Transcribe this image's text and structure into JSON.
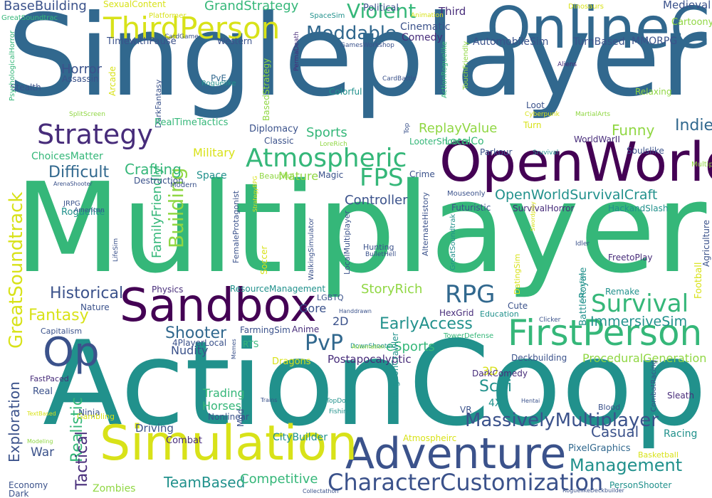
{
  "palette": {
    "background": "#ffffff",
    "dark_purple": "#440154",
    "purple": "#472c7a",
    "indigo": "#3b528b",
    "blue": "#31688e",
    "teal": "#21918c",
    "green": "#35b779",
    "lime": "#90d743",
    "yellow": "#d8e219"
  },
  "words": [
    {
      "text": "Singleplayer",
      "color": "#31688e"
    },
    {
      "text": "Multiplayer",
      "color": "#35b779"
    },
    {
      "text": "ActionCoop",
      "color": "#21918c"
    },
    {
      "text": "OnlineCo",
      "color": "#31688e"
    },
    {
      "text": "OpenWorld",
      "color": "#440154"
    },
    {
      "text": "Sandbox",
      "color": "#440154"
    },
    {
      "text": "Adventure",
      "color": "#3b528b"
    },
    {
      "text": "Simulation",
      "color": "#d8e219"
    },
    {
      "text": "FirstPerson",
      "color": "#35b779"
    },
    {
      "text": "Op",
      "color": "#3b528b"
    },
    {
      "text": "ThirdPerson",
      "color": "#d8e219"
    },
    {
      "text": "Strategy",
      "color": "#472c7a"
    },
    {
      "text": "Atmospheric",
      "color": "#35b779"
    },
    {
      "text": "GreatSoundtrack",
      "color": "#d8e219"
    },
    {
      "text": "CharacterCustomization",
      "color": "#3b528b"
    },
    {
      "text": "Survival",
      "color": "#35b779"
    },
    {
      "text": "RPG",
      "color": "#31688e"
    },
    {
      "text": "FPS",
      "color": "#35b779"
    },
    {
      "text": "Building",
      "color": "#90d743"
    },
    {
      "text": "Moddable",
      "color": "#31688e"
    },
    {
      "text": "Violent",
      "color": "#35b779"
    },
    {
      "text": "MassivelyMultiplayer",
      "color": "#3b528b"
    },
    {
      "text": "Management",
      "color": "#21918c"
    },
    {
      "text": "Exploration",
      "color": "#3b528b"
    },
    {
      "text": "Historical",
      "color": "#3b528b"
    },
    {
      "text": "Shooter",
      "color": "#31688e"
    },
    {
      "text": "Fantasy",
      "color": "#d8e219"
    },
    {
      "text": "Difficult",
      "color": "#31688e"
    },
    {
      "text": "Crafting",
      "color": "#35b779"
    },
    {
      "text": "EarlyAccess",
      "color": "#21918c"
    },
    {
      "text": "PvP",
      "color": "#31688e"
    },
    {
      "text": "Realistic",
      "color": "#35b779"
    },
    {
      "text": "Tactical",
      "color": "#472c7a"
    },
    {
      "text": "Scifi",
      "color": "#21918c"
    },
    {
      "text": "Indie",
      "color": "#31688e"
    },
    {
      "text": "Funny",
      "color": "#90d743"
    },
    {
      "text": "ReplayValue",
      "color": "#90d743"
    },
    {
      "text": "Sports",
      "color": "#35b779"
    },
    {
      "text": "StoryRich",
      "color": "#90d743"
    },
    {
      "text": "OpenWorldSurvivalCraft",
      "color": "#21918c"
    },
    {
      "text": "Controller",
      "color": "#3b528b"
    },
    {
      "text": "ImmersiveSim",
      "color": "#21918c"
    },
    {
      "text": "eSports",
      "color": "#35b779"
    },
    {
      "text": "Casual",
      "color": "#3b528b"
    },
    {
      "text": "TeamBased",
      "color": "#21918c"
    },
    {
      "text": "Competitive",
      "color": "#35b779"
    },
    {
      "text": "Horror",
      "color": "#3b528b"
    },
    {
      "text": "GrandStrategy",
      "color": "#35b779"
    },
    {
      "text": "BaseBuilding",
      "color": "#3b528b"
    },
    {
      "text": "FamilyFriendly",
      "color": "#35b779"
    },
    {
      "text": "Nudity",
      "color": "#3b528b"
    },
    {
      "text": "Trading",
      "color": "#35b779"
    },
    {
      "text": "Horses",
      "color": "#35b779"
    },
    {
      "text": "ProceduralGeneration",
      "color": "#90d743"
    },
    {
      "text": "Military",
      "color": "#d8e219"
    },
    {
      "text": "Mature",
      "color": "#90d743"
    },
    {
      "text": "LocalCo",
      "color": "#35b779"
    },
    {
      "text": "Gore",
      "color": "#3b528b"
    },
    {
      "text": "2D",
      "color": "#3b528b"
    },
    {
      "text": "3D",
      "color": "#d8e219"
    },
    {
      "text": "War",
      "color": "#3b528b"
    },
    {
      "text": "Postapocalyptic",
      "color": "#472c7a"
    },
    {
      "text": "Zombies",
      "color": "#90d743"
    },
    {
      "text": "PixelGraphics",
      "color": "#31688e"
    },
    {
      "text": "Racing",
      "color": "#21918c"
    },
    {
      "text": "Driving",
      "color": "#3b528b"
    },
    {
      "text": "4X",
      "color": "#21918c"
    },
    {
      "text": "CityBuilder",
      "color": "#21918c"
    },
    {
      "text": "Cinematic",
      "color": "#3b528b"
    },
    {
      "text": "Comedy",
      "color": "#472c7a"
    },
    {
      "text": "Third",
      "color": "#472c7a"
    },
    {
      "text": "Medieval",
      "color": "#3b528b"
    },
    {
      "text": "Cartoony",
      "color": "#90d743"
    },
    {
      "text": "MMORPG",
      "color": "#3b528b"
    },
    {
      "text": "TurnBased",
      "color": "#3b528b"
    },
    {
      "text": "AutomobileSim",
      "color": "#3b528b"
    },
    {
      "text": "SexualContent",
      "color": "#d8e219"
    },
    {
      "text": "Political",
      "color": "#3b528b"
    },
    {
      "text": "Western",
      "color": "#3b528b"
    },
    {
      "text": "TimewithPause",
      "color": "#3b528b"
    },
    {
      "text": "Arcade",
      "color": "#d8e219"
    },
    {
      "text": "PvE",
      "color": "#31688e"
    },
    {
      "text": "Stealth",
      "color": "#3b528b"
    },
    {
      "text": "Assassin",
      "color": "#3b528b"
    },
    {
      "text": "DarkFantasy",
      "color": "#3b528b"
    },
    {
      "text": "BasedStrategy",
      "color": "#90d743"
    },
    {
      "text": "RealTimeTactics",
      "color": "#35b779"
    },
    {
      "text": "Diplomacy",
      "color": "#3b528b"
    },
    {
      "text": "Classic",
      "color": "#3b528b"
    },
    {
      "text": "LooterShooter",
      "color": "#35b779"
    },
    {
      "text": "Turn",
      "color": "#d8e219"
    },
    {
      "text": "Loot",
      "color": "#3b528b"
    },
    {
      "text": "Colorful",
      "color": "#21918c"
    },
    {
      "text": "Relaxing",
      "color": "#90d743"
    },
    {
      "text": "WorldWarII",
      "color": "#472c7a"
    },
    {
      "text": "Soulslike",
      "color": "#3b528b"
    },
    {
      "text": "Parkour",
      "color": "#3b528b"
    },
    {
      "text": "Space",
      "color": "#21918c"
    },
    {
      "text": "Destruction",
      "color": "#3b528b"
    },
    {
      "text": "Magic",
      "color": "#3b528b"
    },
    {
      "text": "Crime",
      "color": "#3b528b"
    },
    {
      "text": "Futuristic",
      "color": "#3b528b"
    },
    {
      "text": "SurvivalHorror",
      "color": "#472c7a"
    },
    {
      "text": "HackandSlash",
      "color": "#21918c"
    },
    {
      "text": "Roguelite",
      "color": "#21918c"
    },
    {
      "text": "ChoicesMatter",
      "color": "#35b779"
    },
    {
      "text": "FreetoPlay",
      "color": "#472c7a"
    },
    {
      "text": "Physics",
      "color": "#472c7a"
    },
    {
      "text": "ResourceManagement",
      "color": "#21918c"
    },
    {
      "text": "Soccer",
      "color": "#d8e219"
    },
    {
      "text": "Nature",
      "color": "#3b528b"
    },
    {
      "text": "Remake",
      "color": "#21918c"
    },
    {
      "text": "Football",
      "color": "#d8e219"
    },
    {
      "text": "Agriculture",
      "color": "#3b528b"
    },
    {
      "text": "BattleRoyale",
      "color": "#21918c"
    },
    {
      "text": "HexGrid",
      "color": "#472c7a"
    },
    {
      "text": "Cute",
      "color": "#3b528b"
    },
    {
      "text": "Education",
      "color": "#21918c"
    },
    {
      "text": "Anime",
      "color": "#472c7a"
    },
    {
      "text": "FarmingSim",
      "color": "#3b528b"
    },
    {
      "text": "4PlayerLocal",
      "color": "#3b528b"
    },
    {
      "text": "Deckbuilding",
      "color": "#3b528b"
    },
    {
      "text": "RTS",
      "color": "#35b779"
    },
    {
      "text": "Dragons",
      "color": "#d8e219"
    },
    {
      "text": "DarkComedy",
      "color": "#472c7a"
    },
    {
      "text": "DungeonCrawler",
      "color": "#21918c"
    },
    {
      "text": "Nonlinear",
      "color": "#3b528b"
    },
    {
      "text": "Combat",
      "color": "#472c7a"
    },
    {
      "text": "Mod",
      "color": "#3b528b"
    },
    {
      "text": "Ninja",
      "color": "#3b528b"
    },
    {
      "text": "Real",
      "color": "#3b528b"
    },
    {
      "text": "Dark",
      "color": "#3b528b"
    },
    {
      "text": "Economy",
      "color": "#3b528b"
    },
    {
      "text": "FastPaced",
      "color": "#472c7a"
    },
    {
      "text": "Gambling",
      "color": "#d8e219"
    },
    {
      "text": "Blood",
      "color": "#3b528b"
    },
    {
      "text": "Sleath",
      "color": "#472c7a"
    },
    {
      "text": "Atmospheirc",
      "color": "#d8e219"
    },
    {
      "text": "Basketball",
      "color": "#d8e219"
    },
    {
      "text": "PersonShooter",
      "color": "#21918c"
    },
    {
      "text": "VR",
      "color": "#3b528b"
    },
    {
      "text": "Beautiful",
      "color": "#90d743"
    },
    {
      "text": "Modern",
      "color": "#3b528b"
    },
    {
      "text": "Capitalism",
      "color": "#3b528b"
    },
    {
      "text": "LGBTQ",
      "color": "#3b528b"
    },
    {
      "text": "CombatRacing",
      "color": "#3b528b"
    },
    {
      "text": "WalkingSimulator",
      "color": "#3b528b"
    },
    {
      "text": "LocalMultiplayer",
      "color": "#3b528b"
    },
    {
      "text": "FemaleProtagonist",
      "color": "#3b528b"
    },
    {
      "text": "AlternateHistory",
      "color": "#3b528b"
    },
    {
      "text": "TowerDefense",
      "color": "#35b779"
    },
    {
      "text": "Hunting",
      "color": "#3b528b"
    },
    {
      "text": "MultipleEndings",
      "color": "#90d743"
    },
    {
      "text": "GreatSoundtrak",
      "color": "#21918c"
    },
    {
      "text": "PsychologicalHorror",
      "color": "#35b779"
    },
    {
      "text": "GreatSoundtrac",
      "color": "#35b779"
    },
    {
      "text": "DatingSim",
      "color": "#d8e219"
    },
    {
      "text": "Platformer",
      "color": "#d8e219"
    },
    {
      "text": "Dinosaurs",
      "color": "#d8e219"
    },
    {
      "text": "Animation",
      "color": "#d8e219"
    },
    {
      "text": "SpaceSim",
      "color": "#21918c"
    },
    {
      "text": "CardGame",
      "color": "#3b528b"
    },
    {
      "text": "GamesWorkshop",
      "color": "#3b528b"
    },
    {
      "text": "PermaDeath",
      "color": "#472c7a"
    },
    {
      "text": "CardBattle",
      "color": "#3b528b"
    },
    {
      "text": "ActionRoguelike",
      "color": "#35b779"
    },
    {
      "text": "TouchFriendly",
      "color": "#90d743"
    },
    {
      "text": "Aliens",
      "color": "#472c7a"
    },
    {
      "text": "Roguelike",
      "color": "#21918c"
    },
    {
      "text": "SplitScreen",
      "color": "#90d743"
    },
    {
      "text": "Cyberpunk",
      "color": "#d8e219"
    },
    {
      "text": "MartialArts",
      "color": "#90d743"
    },
    {
      "text": "LoreRich",
      "color": "#90d743"
    },
    {
      "text": "Top",
      "color": "#3b528b"
    },
    {
      "text": "Sruvival",
      "color": "#21918c"
    },
    {
      "text": "ArenaShooter",
      "color": "#3b528b"
    },
    {
      "text": "JRPG",
      "color": "#3b528b"
    },
    {
      "text": "American",
      "color": "#3b528b"
    },
    {
      "text": "LifeSim",
      "color": "#3b528b"
    },
    {
      "text": "StrategyRPG",
      "color": "#d8e219"
    },
    {
      "text": "Mouseonly",
      "color": "#3b528b"
    },
    {
      "text": "Swordplay",
      "color": "#d8e219"
    },
    {
      "text": "Idler",
      "color": "#3b528b"
    },
    {
      "text": "BulletHell",
      "color": "#3b528b"
    },
    {
      "text": "ColonySim",
      "color": "#21918c"
    },
    {
      "text": "Clicker",
      "color": "#3b528b"
    },
    {
      "text": "Handdrawn",
      "color": "#3b528b"
    },
    {
      "text": "DownShooter",
      "color": "#21918c"
    },
    {
      "text": "Automation",
      "color": "#90d743"
    },
    {
      "text": "Memes",
      "color": "#3b528b"
    },
    {
      "text": "TopDown",
      "color": "#21918c"
    },
    {
      "text": "Fishing",
      "color": "#21918c"
    },
    {
      "text": "Trains",
      "color": "#3b528b"
    },
    {
      "text": "Hentai",
      "color": "#3b528b"
    },
    {
      "text": "TextBased",
      "color": "#d8e219"
    },
    {
      "text": "Modeling",
      "color": "#90d743"
    },
    {
      "text": "Collectathon",
      "color": "#3b528b"
    },
    {
      "text": "RoguelikeDeckbuilder",
      "color": "#3b528b"
    }
  ]
}
